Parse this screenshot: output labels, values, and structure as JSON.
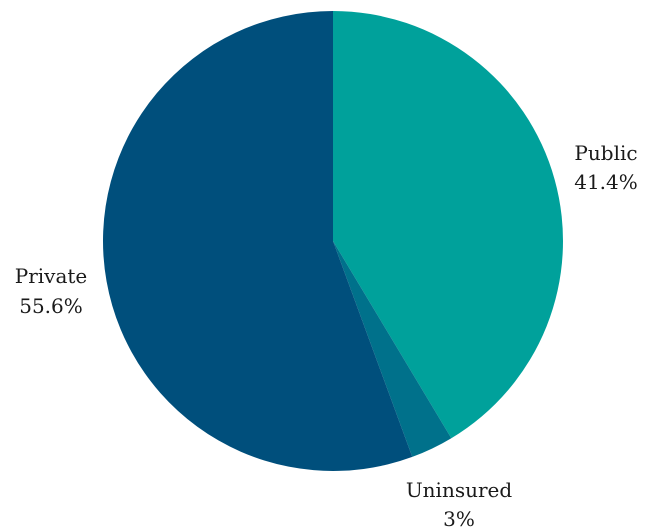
{
  "chart_data": {
    "type": "pie",
    "title": "",
    "slices": [
      {
        "label": "Public",
        "value": 41.4,
        "value_label": "41.4%",
        "color": "#00a19b"
      },
      {
        "label": "Uninsured",
        "value": 3.0,
        "value_label": "3%",
        "color": "#00718b"
      },
      {
        "label": "Private",
        "value": 55.6,
        "value_label": "55.6%",
        "color": "#004f7c"
      }
    ],
    "start": "12 o'clock",
    "direction": "clockwise",
    "legend": "none"
  }
}
